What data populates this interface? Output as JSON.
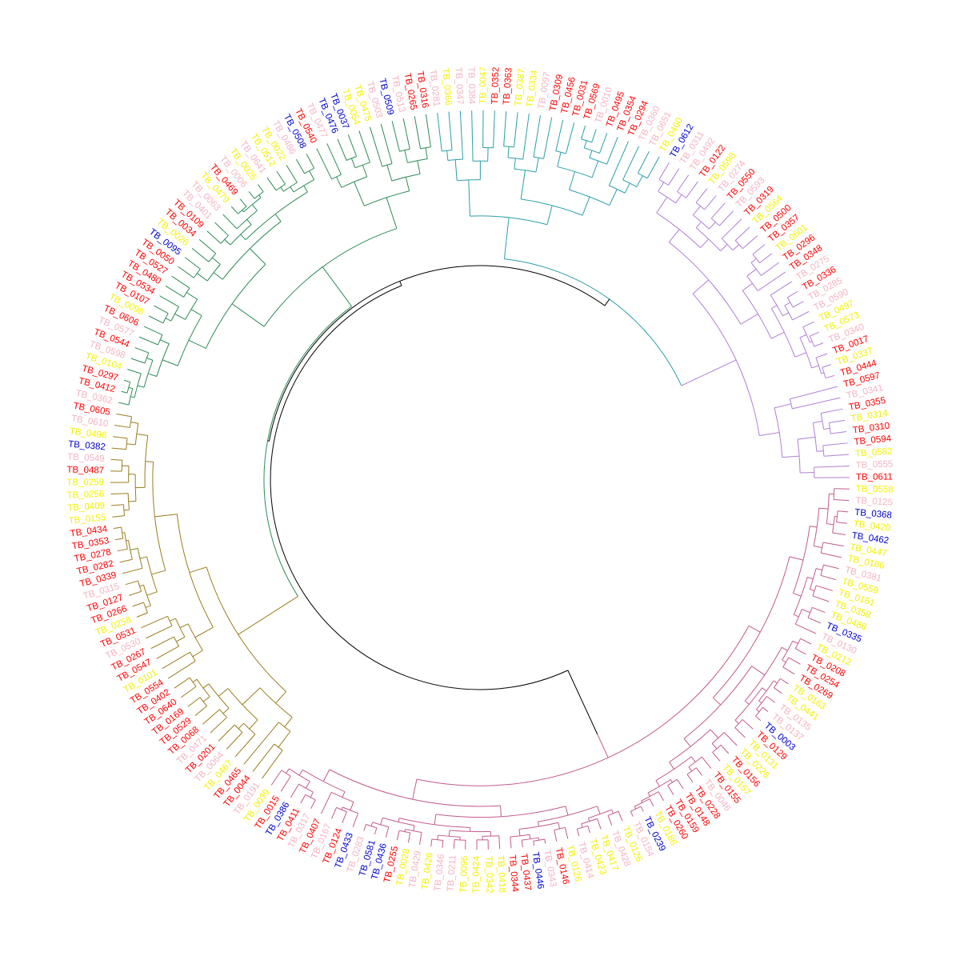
{
  "colors": {
    "trunk": "#000000",
    "green_clade": "#2e8b57",
    "teal_clade": "#2b9fa8",
    "purple_clade": "#b07fd6",
    "olive_clade": "#9a7d1e",
    "magenta_clade": "#c25b8d",
    "label_red": "#ff0000",
    "label_pink": "#f4b3c2",
    "label_yellow": "#f2f200",
    "label_blue": "#0000cc"
  },
  "clades": [
    {
      "name": "magenta",
      "color_key": "magenta_clade",
      "leaves": [
        [
          "TB_0558",
          "y"
        ],
        [
          "TB_0125",
          "p"
        ],
        [
          "TB_0368",
          "b"
        ],
        [
          "TB_0420",
          "y"
        ],
        [
          "TB_0462",
          "b"
        ],
        [
          "TB_0447",
          "y"
        ],
        [
          "TB_0186",
          "y"
        ],
        [
          "TB_0381",
          "p"
        ],
        [
          "TB_0559",
          "y"
        ],
        [
          "TB_0161",
          "y"
        ],
        [
          "TB_0358",
          "y"
        ],
        [
          "TB_0488",
          "y"
        ],
        [
          "TB_0335",
          "b"
        ],
        [
          "TB_0130",
          "p"
        ],
        [
          "TB_0212",
          "y"
        ],
        [
          "TB_0208",
          "r"
        ],
        [
          "TB_0254",
          "r"
        ],
        [
          "TB_0269",
          "r"
        ],
        [
          "TB_0163",
          "y"
        ],
        [
          "TB_0441",
          "y"
        ],
        [
          "TB_0135",
          "p"
        ],
        [
          "TB_0137",
          "p"
        ],
        [
          "TB_0003",
          "b"
        ],
        [
          "TB_0129",
          "r"
        ],
        [
          "TB_0131",
          "y"
        ],
        [
          "TB_0226",
          "y"
        ],
        [
          "TB_0156",
          "r"
        ],
        [
          "TB_0157",
          "y"
        ],
        [
          "TB_0155",
          "r"
        ],
        [
          "TB_0046",
          "p"
        ],
        [
          "TB_0228",
          "r"
        ],
        [
          "TB_0148",
          "r"
        ],
        [
          "TB_0159",
          "r"
        ],
        [
          "TB_0260",
          "r"
        ],
        [
          "TB_0186",
          "y"
        ],
        [
          "TB_0239",
          "b"
        ],
        [
          "TB_0154",
          "p"
        ],
        [
          "TB_0126",
          "y"
        ],
        [
          "TB_0428",
          "p"
        ],
        [
          "TB_0417",
          "y"
        ],
        [
          "TB_0423",
          "y"
        ],
        [
          "TB_0414",
          "p"
        ],
        [
          "TB_0126",
          "y"
        ],
        [
          "TB_0146",
          "r"
        ],
        [
          "TB_0343",
          "p"
        ],
        [
          "TB_0446",
          "b"
        ],
        [
          "TB_0437",
          "r"
        ],
        [
          "TB_0344",
          "r"
        ],
        [
          "TB_0418",
          "y"
        ],
        [
          "TB_0342",
          "y"
        ],
        [
          "TB_0424",
          "y"
        ],
        [
          "TB_0096",
          "y"
        ],
        [
          "TB_0211",
          "p"
        ],
        [
          "TB_0346",
          "p"
        ],
        [
          "TB_0426",
          "y"
        ],
        [
          "TB_0429",
          "p"
        ],
        [
          "TB_0028",
          "y"
        ],
        [
          "TB_0255",
          "r"
        ],
        [
          "TB_0436",
          "b"
        ],
        [
          "TB_0581",
          "b"
        ],
        [
          "TB_0283",
          "p"
        ],
        [
          "TB_0433",
          "b"
        ],
        [
          "TB_0124",
          "r"
        ],
        [
          "TB_0167",
          "p"
        ],
        [
          "TB_0407",
          "r"
        ],
        [
          "TB_0317",
          "p"
        ],
        [
          "TB_0411",
          "r"
        ],
        [
          "TB_0386",
          "b"
        ],
        [
          "TB_0015",
          "r"
        ],
        [
          "TB_0039",
          "y"
        ]
      ]
    },
    {
      "name": "olive",
      "color_key": "olive_clade",
      "leaves": [
        [
          "TB_0191",
          "p"
        ],
        [
          "TB_0044",
          "r"
        ],
        [
          "TB_0465",
          "r"
        ],
        [
          "TB_0467",
          "y"
        ],
        [
          "TB_0064",
          "p"
        ],
        [
          "TB_0201",
          "r"
        ],
        [
          "TB_0471",
          "p"
        ],
        [
          "TB_0068",
          "r"
        ],
        [
          "TB_0529",
          "r"
        ],
        [
          "TB_0169",
          "r"
        ],
        [
          "TB_0640",
          "r"
        ],
        [
          "TB_0402",
          "r"
        ],
        [
          "TB_0554",
          "r"
        ],
        [
          "TB_0101",
          "y"
        ],
        [
          "TB_0547",
          "r"
        ],
        [
          "TB_0267",
          "r"
        ],
        [
          "TB_0530",
          "p"
        ],
        [
          "TB_0531",
          "r"
        ],
        [
          "TB_0258",
          "y"
        ],
        [
          "TB_0266",
          "r"
        ],
        [
          "TB_0127",
          "r"
        ],
        [
          "TB_0315",
          "p"
        ],
        [
          "TB_0339",
          "r"
        ],
        [
          "TB_0282",
          "r"
        ],
        [
          "TB_0278",
          "r"
        ],
        [
          "TB_0353",
          "r"
        ],
        [
          "TB_0434",
          "r"
        ],
        [
          "TB_0155",
          "y"
        ],
        [
          "TB_0409",
          "y"
        ],
        [
          "TB_0256",
          "y"
        ],
        [
          "TB_0259",
          "y"
        ],
        [
          "TB_0487",
          "r"
        ],
        [
          "TB_0549",
          "p"
        ],
        [
          "TB_0382",
          "b"
        ],
        [
          "TB_0496",
          "y"
        ],
        [
          "TB_0610",
          "p"
        ],
        [
          "TB_0605",
          "r"
        ]
      ]
    },
    {
      "name": "green",
      "color_key": "green_clade",
      "leaves": [
        [
          "TB_0362",
          "p"
        ],
        [
          "TB_0412",
          "r"
        ],
        [
          "TB_0297",
          "r"
        ],
        [
          "TB_0104",
          "y"
        ],
        [
          "TB_0598",
          "p"
        ],
        [
          "TB_0544",
          "r"
        ],
        [
          "TB_0577",
          "p"
        ],
        [
          "TB_0606",
          "r"
        ],
        [
          "TB_0098",
          "y"
        ],
        [
          "TB_0107",
          "r"
        ],
        [
          "TB_0534",
          "r"
        ],
        [
          "TB_0480",
          "r"
        ],
        [
          "TB_0527",
          "r"
        ],
        [
          "TB_0050",
          "r"
        ],
        [
          "TB_0095",
          "b"
        ],
        [
          "TB_0026",
          "y"
        ],
        [
          "TB_0034",
          "r"
        ],
        [
          "TB_0109",
          "r"
        ],
        [
          "TB_0401",
          "p"
        ],
        [
          "TB_0063",
          "p"
        ],
        [
          "TB_0479",
          "y"
        ],
        [
          "TB_0469",
          "r"
        ],
        [
          "TB_0006",
          "p"
        ],
        [
          "TB_0025",
          "y"
        ],
        [
          "TB_0641",
          "p"
        ],
        [
          "TB_0512",
          "y"
        ],
        [
          "TB_0022",
          "y"
        ],
        [
          "TB_0486",
          "p"
        ],
        [
          "TB_0508",
          "b"
        ],
        [
          "TB_0540",
          "r"
        ],
        [
          "TB_0477",
          "p"
        ],
        [
          "TB_0476",
          "b"
        ],
        [
          "TB_0037",
          "b"
        ],
        [
          "TB_0054",
          "y"
        ],
        [
          "TB_0475",
          "y"
        ],
        [
          "TB_0503",
          "p"
        ],
        [
          "TB_0509",
          "b"
        ],
        [
          "TB_0513",
          "p"
        ],
        [
          "TB_0265",
          "r"
        ],
        [
          "TB_0316",
          "r"
        ]
      ]
    },
    {
      "name": "teal",
      "color_key": "teal_clade",
      "leaves": [
        [
          "TB_0281",
          "p"
        ],
        [
          "TB_0366",
          "y"
        ],
        [
          "TB_0347",
          "p"
        ],
        [
          "TB_0384",
          "p"
        ],
        [
          "TB_0047",
          "y"
        ],
        [
          "TB_0352",
          "r"
        ],
        [
          "TB_0363",
          "r"
        ],
        [
          "TB_0387",
          "y"
        ],
        [
          "TB_0334",
          "y"
        ],
        [
          "TB_0097",
          "p"
        ],
        [
          "TB_0309",
          "r"
        ],
        [
          "TB_0456",
          "r"
        ],
        [
          "TB_0031",
          "r"
        ],
        [
          "TB_0569",
          "r"
        ],
        [
          "TB_0010",
          "p"
        ],
        [
          "TB_0495",
          "r"
        ],
        [
          "TB_0354",
          "r"
        ],
        [
          "TB_0294",
          "r"
        ],
        [
          "TB_0360",
          "p"
        ],
        [
          "TB_0651",
          "p"
        ],
        [
          "TB_0460",
          "y"
        ]
      ]
    },
    {
      "name": "purple",
      "color_key": "purple_clade",
      "leaves": [
        [
          "TB_0612",
          "b"
        ],
        [
          "TB_0311",
          "p"
        ],
        [
          "TB_0492",
          "p"
        ],
        [
          "TB_0122",
          "r"
        ],
        [
          "TB_0598",
          "y"
        ],
        [
          "TB_0274",
          "p"
        ],
        [
          "TB_0550",
          "r"
        ],
        [
          "TB_0593",
          "p"
        ],
        [
          "TB_0319",
          "r"
        ],
        [
          "TB_0564",
          "y"
        ],
        [
          "TB_0500",
          "r"
        ],
        [
          "TB_0357",
          "r"
        ],
        [
          "TB_0601",
          "y"
        ],
        [
          "TB_0296",
          "r"
        ],
        [
          "TB_0348",
          "r"
        ],
        [
          "TB_0275",
          "p"
        ],
        [
          "TB_0336",
          "r"
        ],
        [
          "TB_0285",
          "p"
        ],
        [
          "TB_0590",
          "p"
        ],
        [
          "TB_0497",
          "y"
        ],
        [
          "TB_0573",
          "y"
        ],
        [
          "TB_0340",
          "p"
        ],
        [
          "TB_0017",
          "r"
        ],
        [
          "TB_0337",
          "y"
        ],
        [
          "TB_0444",
          "r"
        ],
        [
          "TB_0597",
          "r"
        ],
        [
          "TB_0341",
          "p"
        ],
        [
          "TB_0355",
          "r"
        ],
        [
          "TB_0314",
          "y"
        ],
        [
          "TB_0310",
          "r"
        ],
        [
          "TB_0594",
          "r"
        ],
        [
          "TB_0582",
          "y"
        ],
        [
          "TB_0555",
          "p"
        ],
        [
          "TB_0611",
          "r"
        ]
      ]
    }
  ]
}
